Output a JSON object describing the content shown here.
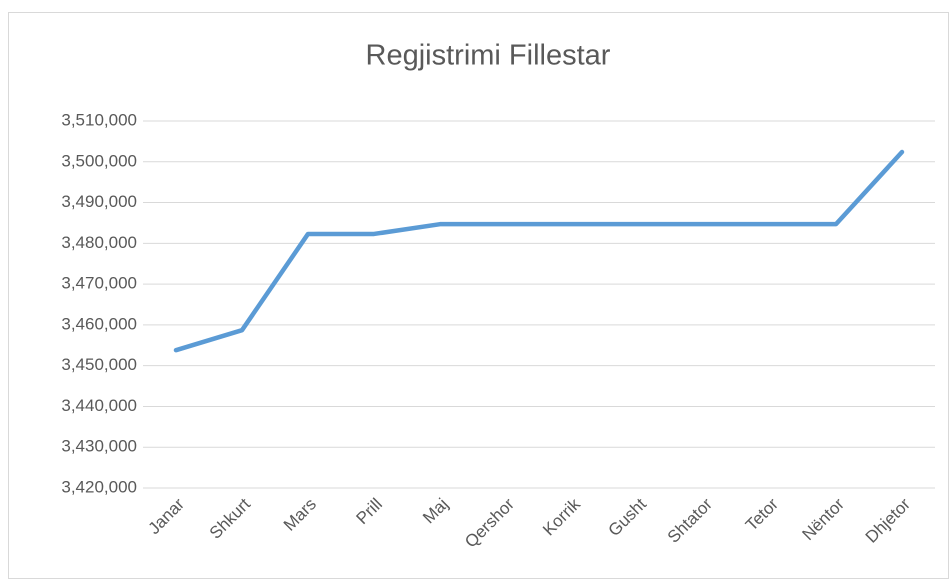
{
  "chart_data": {
    "type": "line",
    "title": "Regjistrimi Fillestar",
    "categories": [
      "Janar",
      "Shkurt",
      "Mars",
      "Prill",
      "Maj",
      "Qershor",
      "Korrik",
      "Gusht",
      "Shtator",
      "Tetor",
      "Nëntor",
      "Dhjetor"
    ],
    "series": [
      {
        "name": "Regjistrimi Fillestar",
        "color": "#5b9bd5",
        "values": [
          3453800,
          3458700,
          3482300,
          3482300,
          3484700,
          3484700,
          3484700,
          3484700,
          3484700,
          3484700,
          3484700,
          3502400
        ]
      }
    ],
    "ylim": [
      3420000,
      3510000
    ],
    "yticks": [
      {
        "value": 3420000,
        "label": "3,420,000"
      },
      {
        "value": 3430000,
        "label": "3,430,000"
      },
      {
        "value": 3440000,
        "label": "3,440,000"
      },
      {
        "value": 3450000,
        "label": "3,450,000"
      },
      {
        "value": 3460000,
        "label": "3,460,000"
      },
      {
        "value": 3470000,
        "label": "3,470,000"
      },
      {
        "value": 3480000,
        "label": "3,480,000"
      },
      {
        "value": 3490000,
        "label": "3,490,000"
      },
      {
        "value": 3500000,
        "label": "3,500,000"
      },
      {
        "value": 3510000,
        "label": "3,510,000"
      }
    ],
    "grid": true
  }
}
